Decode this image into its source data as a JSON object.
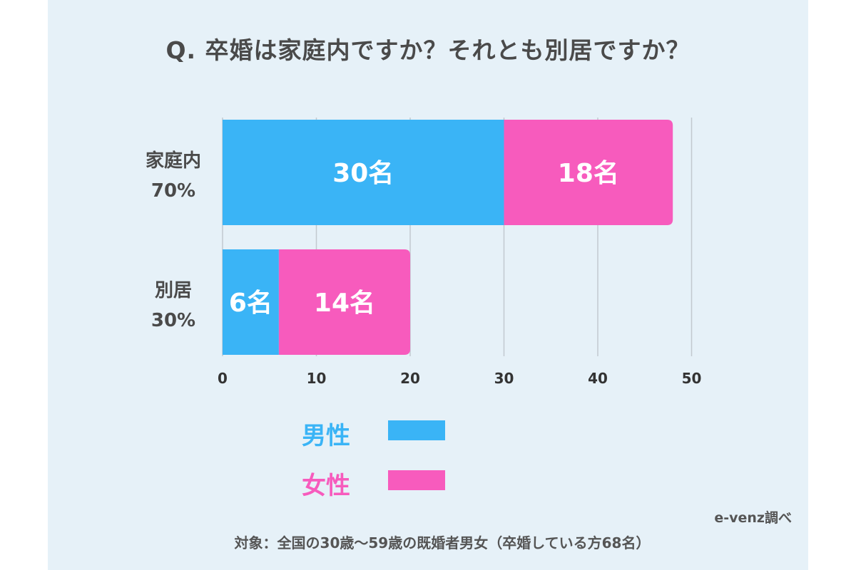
{
  "title": "Q. 卒婚は家庭内ですか？それとも別居ですか？",
  "colors": {
    "male": "#3ab4f6",
    "female": "#f75bbd",
    "background": "#e6f1f8",
    "grid": "#c2c9cf",
    "text": "#4a4a4a"
  },
  "chart_data": {
    "type": "bar",
    "orientation": "horizontal",
    "stacked": true,
    "categories": [
      {
        "name": "家庭内",
        "percent": "70%"
      },
      {
        "name": "別居",
        "percent": "30%"
      }
    ],
    "series": [
      {
        "name": "男性",
        "values": [
          30,
          6
        ],
        "labels": [
          "30名",
          "6名"
        ],
        "color": "#3ab4f6"
      },
      {
        "name": "女性",
        "values": [
          18,
          14
        ],
        "labels": [
          "18名",
          "14名"
        ],
        "color": "#f75bbd"
      }
    ],
    "xlim": [
      0,
      50
    ],
    "xticks": [
      0,
      10,
      20,
      30,
      40,
      50
    ],
    "grid": true,
    "legend_position": "bottom-center"
  },
  "legend": [
    {
      "label": "男性",
      "color": "#3ab4f6"
    },
    {
      "label": "女性",
      "color": "#f75bbd"
    }
  ],
  "source": "e-venz調べ",
  "note": "対象：全国の30歳〜59歳の既婚者男女（卒婚している方68名）"
}
